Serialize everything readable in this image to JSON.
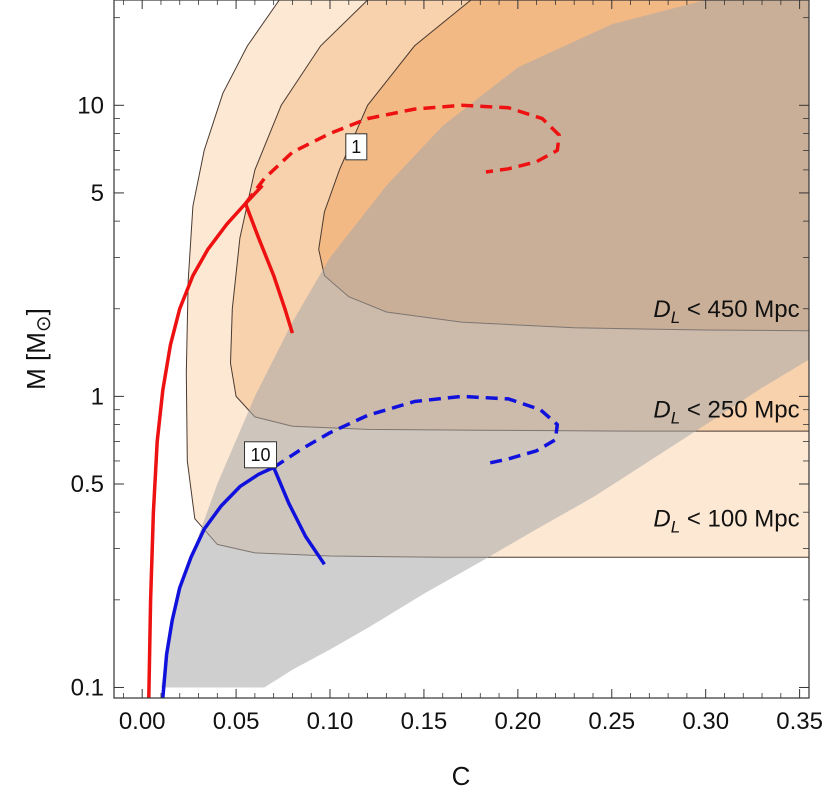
{
  "chart_data": {
    "type": "area",
    "title": "",
    "xlabel": "C",
    "ylabel": "M [M",
    "ylabel_symbol": "⊙",
    "ylabel_close": "]",
    "xlim": [
      -0.015,
      0.355
    ],
    "ylim": [
      0.092,
      23
    ],
    "yscale": "log",
    "grid": false,
    "x_ticks": [
      {
        "value": 0.0,
        "label": "0.00"
      },
      {
        "value": 0.05,
        "label": "0.05"
      },
      {
        "value": 0.1,
        "label": "0.10"
      },
      {
        "value": 0.15,
        "label": "0.15"
      },
      {
        "value": 0.2,
        "label": "0.20"
      },
      {
        "value": 0.25,
        "label": "0.25"
      },
      {
        "value": 0.3,
        "label": "0.30"
      },
      {
        "value": 0.35,
        "label": "0.35"
      }
    ],
    "y_ticks": [
      {
        "value": 0.1,
        "label": "0.1"
      },
      {
        "value": 0.5,
        "label": "0.5"
      },
      {
        "value": 1,
        "label": "1"
      },
      {
        "value": 5,
        "label": "5"
      },
      {
        "value": 10,
        "label": "10"
      }
    ],
    "distance_regions": [
      {
        "label_prefix": "D",
        "label_sub": "L",
        "label_rest": " < 100 Mpc",
        "label_at": {
          "x": 0.35,
          "y": 0.38
        },
        "fill": "#fde8d4",
        "fill_opacity": 1,
        "boundary": {
          "x": [
            0.073,
            0.056,
            0.043,
            0.033,
            0.027,
            0.0245,
            0.0235,
            0.024,
            0.028,
            0.04,
            0.06,
            0.1,
            0.16,
            0.25,
            0.36
          ],
          "y": [
            23,
            16,
            11,
            7,
            4.5,
            2.5,
            1.2,
            0.6,
            0.38,
            0.31,
            0.29,
            0.283,
            0.28,
            0.28,
            0.28
          ]
        }
      },
      {
        "label_prefix": "D",
        "label_sub": "L",
        "label_rest": " < 250 Mpc",
        "label_at": {
          "x": 0.35,
          "y": 0.9
        },
        "fill": "#f5c9a0",
        "fill_opacity": 0.75,
        "boundary": {
          "x": [
            0.12,
            0.095,
            0.074,
            0.06,
            0.052,
            0.048,
            0.047,
            0.05,
            0.06,
            0.08,
            0.12,
            0.18,
            0.26,
            0.36
          ],
          "y": [
            23,
            16,
            10,
            6,
            3.5,
            2.0,
            1.3,
            1.0,
            0.85,
            0.79,
            0.77,
            0.765,
            0.76,
            0.76
          ]
        }
      },
      {
        "label_prefix": "D",
        "label_sub": "L",
        "label_rest": " < 450 Mpc",
        "label_at": {
          "x": 0.35,
          "y": 2.0
        },
        "fill": "#f0a86a",
        "fill_opacity": 0.6,
        "boundary": {
          "x": [
            0.175,
            0.145,
            0.12,
            0.105,
            0.097,
            0.094,
            0.097,
            0.11,
            0.13,
            0.17,
            0.23,
            0.3,
            0.36
          ],
          "y": [
            23,
            16,
            10,
            6,
            4.3,
            3.2,
            2.6,
            2.2,
            1.95,
            1.8,
            1.72,
            1.69,
            1.68
          ]
        }
      }
    ],
    "eos_band": {
      "fill": "#a8a8a8",
      "fill_opacity": 0.55,
      "upper": {
        "x": [
          0.01,
          0.02,
          0.04,
          0.06,
          0.08,
          0.1,
          0.13,
          0.16,
          0.2,
          0.25,
          0.3,
          0.36
        ],
        "y": [
          0.1,
          0.22,
          0.5,
          1.0,
          1.8,
          3.0,
          5.3,
          8.5,
          13.5,
          19,
          23,
          23
        ]
      },
      "lower": {
        "x": [
          0.36,
          0.33,
          0.3,
          0.27,
          0.24,
          0.21,
          0.18,
          0.15,
          0.12,
          0.1,
          0.08,
          0.065
        ],
        "y": [
          1.4,
          1.07,
          0.8,
          0.6,
          0.45,
          0.35,
          0.27,
          0.21,
          0.16,
          0.135,
          0.115,
          0.1
        ]
      }
    },
    "series": [
      {
        "color": "#ee1111",
        "style": "solid",
        "x": [
          0.0035,
          0.0045,
          0.006,
          0.008,
          0.011,
          0.015,
          0.02,
          0.027,
          0.035,
          0.045,
          0.055,
          0.064
        ],
        "y": [
          0.092,
          0.2,
          0.4,
          0.7,
          1.05,
          1.5,
          2.0,
          2.6,
          3.2,
          3.9,
          4.6,
          5.3
        ]
      },
      {
        "color": "#ee1111",
        "style": "solid",
        "x": [
          0.055,
          0.062,
          0.07,
          0.076,
          0.08
        ],
        "y": [
          4.6,
          3.5,
          2.6,
          2.0,
          1.65
        ]
      },
      {
        "color": "#ee1111",
        "style": "dashed",
        "x": [
          0.055,
          0.065,
          0.08,
          0.1,
          0.12,
          0.145,
          0.17,
          0.195,
          0.213,
          0.222,
          0.221,
          0.21,
          0.195,
          0.183
        ],
        "y": [
          4.6,
          5.6,
          6.9,
          8.0,
          9.0,
          9.7,
          10.0,
          9.8,
          9.0,
          7.9,
          7.0,
          6.4,
          6.05,
          5.9
        ]
      },
      {
        "color": "#1111dd",
        "style": "solid",
        "x": [
          0.011,
          0.013,
          0.016,
          0.02,
          0.026,
          0.033,
          0.042,
          0.052,
          0.062,
          0.07
        ],
        "y": [
          0.092,
          0.13,
          0.17,
          0.22,
          0.28,
          0.35,
          0.42,
          0.49,
          0.54,
          0.57
        ]
      },
      {
        "color": "#1111dd",
        "style": "solid",
        "x": [
          0.07,
          0.078,
          0.087,
          0.097
        ],
        "y": [
          0.57,
          0.43,
          0.33,
          0.265
        ]
      },
      {
        "color": "#1111dd",
        "style": "dashed",
        "x": [
          0.07,
          0.085,
          0.1,
          0.12,
          0.145,
          0.17,
          0.195,
          0.212,
          0.221,
          0.22,
          0.21,
          0.195,
          0.182
        ],
        "y": [
          0.57,
          0.66,
          0.75,
          0.86,
          0.96,
          1.0,
          0.98,
          0.9,
          0.8,
          0.71,
          0.65,
          0.61,
          0.585
        ]
      }
    ],
    "annotations": [
      {
        "text": "1",
        "x": 0.114,
        "y": 7.2
      },
      {
        "text": "10",
        "x": 0.063,
        "y": 0.63
      }
    ]
  }
}
